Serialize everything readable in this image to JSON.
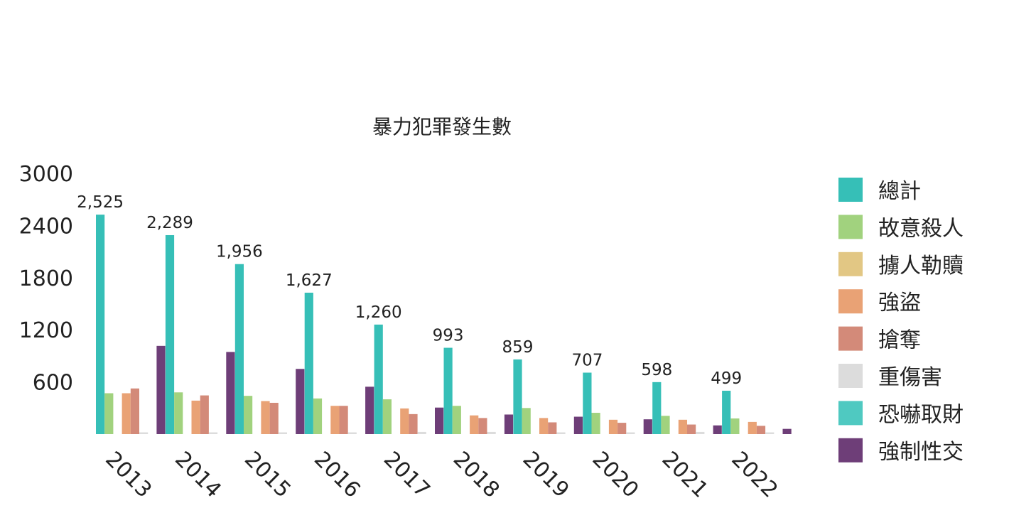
{
  "chart_data": {
    "type": "bar",
    "title": "暴力犯罪發生數",
    "categories": [
      "2013",
      "2014",
      "2015",
      "2016",
      "2017",
      "2018",
      "2019",
      "2020",
      "2021",
      "2022"
    ],
    "yticks": [
      "600",
      "1200",
      "1800",
      "2400",
      "3000"
    ],
    "ylim": [
      0,
      3000
    ],
    "grid": false,
    "legend_position": "right",
    "series": [
      {
        "name": "總計",
        "color": "#36BFB7",
        "values": [
          2525,
          2289,
          1956,
          1627,
          1260,
          993,
          859,
          707,
          598,
          499
        ]
      },
      {
        "name": "故意殺人",
        "color": "#A1D27E",
        "values": [
          470,
          480,
          440,
          410,
          400,
          325,
          300,
          245,
          210,
          180
        ]
      },
      {
        "name": "擄人勒贖",
        "color": "#E2C784",
        "values": [
          0,
          0,
          0,
          0,
          0,
          0,
          0,
          0,
          0,
          0
        ]
      },
      {
        "name": "強盜",
        "color": "#E9A275",
        "values": [
          470,
          385,
          380,
          325,
          295,
          215,
          185,
          165,
          165,
          140
        ]
      },
      {
        "name": "搶奪",
        "color": "#D38A79",
        "values": [
          525,
          445,
          360,
          325,
          230,
          185,
          135,
          130,
          110,
          95
        ]
      },
      {
        "name": "重傷害",
        "color": "#DCDCDC",
        "values": [
          20,
          20,
          20,
          20,
          25,
          25,
          20,
          20,
          25,
          20
        ]
      },
      {
        "name": "恐嚇取財",
        "color": "#4FC9C1",
        "values": [
          0,
          0,
          0,
          0,
          0,
          0,
          0,
          0,
          0,
          0
        ]
      },
      {
        "name": "強制性交",
        "color": "#6E3E78",
        "values": [
          1015,
          945,
          750,
          545,
          305,
          225,
          200,
          170,
          100,
          60
        ]
      }
    ],
    "data_labels": [
      "2,525",
      "2,289",
      "1,956",
      "1,627",
      "1,260",
      "993",
      "859",
      "707",
      "598",
      "499"
    ]
  }
}
